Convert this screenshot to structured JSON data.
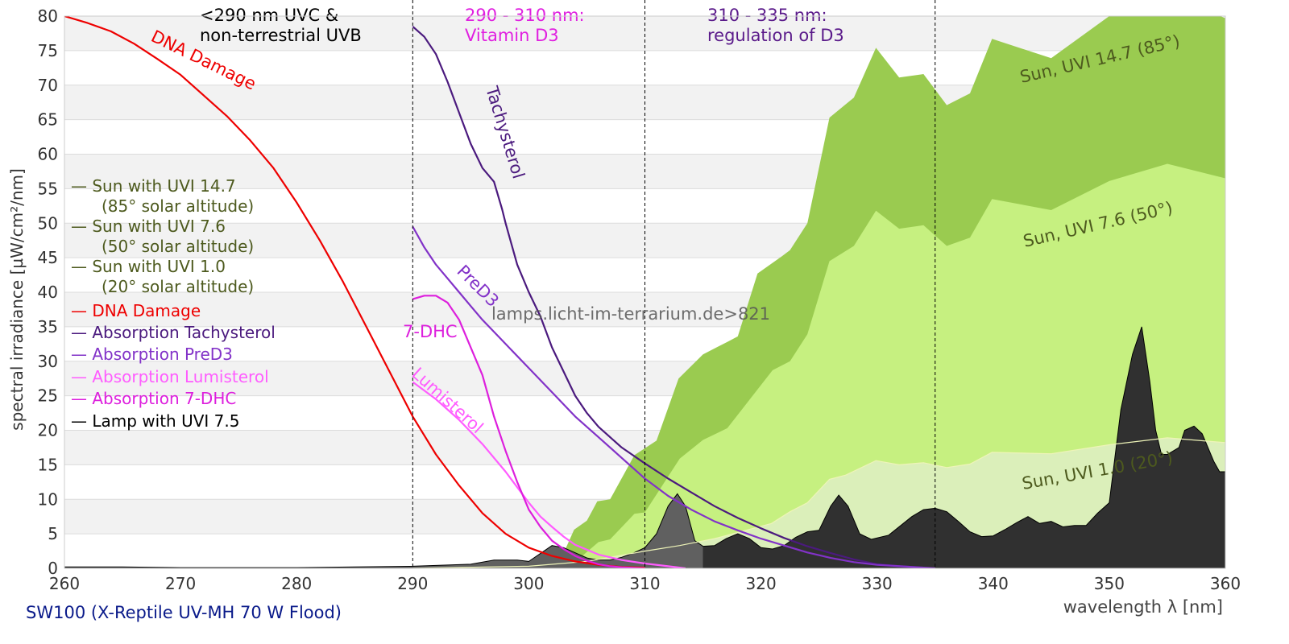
{
  "chart_data": {
    "type": "area",
    "xlabel": "wavelength λ [nm]",
    "ylabel": "spectral irradiance [µW/cm²/nm]",
    "xlim": [
      260,
      360
    ],
    "ylim": [
      0,
      80
    ],
    "x_ticks": [
      260,
      270,
      280,
      290,
      300,
      310,
      320,
      330,
      340,
      350,
      360
    ],
    "y_ticks": [
      0,
      5,
      10,
      15,
      20,
      25,
      30,
      35,
      40,
      45,
      50,
      55,
      60,
      65,
      70,
      75,
      80
    ],
    "grid": "horizontal, alternating bands",
    "footer": "SW100 (X-Reptile UV-MH 70 W Flood)",
    "watermark": "lamps.licht-im-terrarium.de>821",
    "regions": [
      {
        "line": 290,
        "label1": "<290 nm UVC &",
        "label2": "non-terrestrial UVB",
        "color": "#000000"
      },
      {
        "line": 310,
        "label1": "290 - 310 nm:",
        "label2": "Vitamin D3",
        "color": "#e020e0"
      },
      {
        "line": 335,
        "label1": "310 - 335 nm:",
        "label2": "regulation of D3",
        "color": "#5a1a8a"
      }
    ],
    "legend": [
      {
        "text": "— Sun with UVI 14.7",
        "sub": "(85° solar altitude)",
        "color": "#4d5a1e"
      },
      {
        "text": "— Sun with UVI 7.6",
        "sub": "(50° solar altitude)",
        "color": "#4d5a1e"
      },
      {
        "text": "— Sun with UVI 1.0",
        "sub": "(20° solar altitude)",
        "color": "#4d5a1e"
      },
      {
        "text": "— DNA Damage",
        "color": "#ee0000"
      },
      {
        "text": "— Absorption Tachysterol",
        "color": "#4b1a7e"
      },
      {
        "text": "— Absorption PreD3",
        "color": "#8232c8"
      },
      {
        "text": "— Absorption Lumisterol",
        "color": "#ff5cff"
      },
      {
        "text": "— Absorption 7-DHC",
        "color": "#dd1fdd"
      },
      {
        "text": "— Lamp with UVI 7.5",
        "color": "#000000"
      }
    ],
    "areas": [
      {
        "name": "Sun, UVI 14.7 (85°)",
        "color": "#9acb50",
        "x": [
          299,
          300,
          301,
          302,
          303,
          303.9,
          305,
          305.9,
          307,
          309.1,
          311,
          312.9,
          315,
          317.1,
          318,
          319.7,
          321.8,
          322.5,
          324,
          325.9,
          328,
          329.9,
          331.9,
          334,
          336,
          338,
          339.9,
          345,
          350,
          353.7,
          356.3,
          360
        ],
        "y": [
          0,
          0.5,
          1.5,
          2,
          2.2,
          5.6,
          6.9,
          9.7,
          10,
          16.4,
          18.5,
          27.5,
          31,
          32.8,
          33.6,
          42.7,
          45.2,
          46.1,
          50,
          65.3,
          68.2,
          75.4,
          71.1,
          71.6,
          67.1,
          68.8,
          76.7,
          73.9,
          80,
          82.4,
          82.4,
          79.7
        ]
      },
      {
        "name": "Sun, UVI 7.6 (50°)",
        "color": "#c6f080",
        "x": [
          301,
          303,
          304.4,
          306,
          307,
          309.1,
          310,
          313,
          315,
          317.1,
          319,
          321,
          322.5,
          324,
          325.9,
          328,
          329.9,
          331.9,
          334,
          336,
          338,
          339.9,
          345,
          350,
          355,
          360
        ],
        "y": [
          0,
          0.5,
          1.5,
          3.8,
          4.2,
          7.9,
          8.1,
          15.9,
          18.6,
          20.3,
          24.4,
          28.7,
          30,
          33.9,
          44.5,
          46.7,
          51.8,
          49.2,
          49.7,
          46.7,
          47.9,
          53.5,
          51.9,
          56.1,
          58.6,
          56.5
        ]
      },
      {
        "name": "Sun, UVI 1.0 (20°)",
        "color": "#dbefba",
        "x": [
          290,
          300,
          305,
          310,
          313,
          316,
          320.9,
          322.5,
          324,
          325.9,
          327.3,
          329.9,
          331.9,
          334,
          336,
          338,
          339.9,
          345,
          350,
          355,
          360
        ],
        "y": [
          0,
          0.3,
          1,
          2.5,
          3.3,
          4.3,
          6.5,
          8.2,
          9.5,
          12.9,
          13.5,
          15.6,
          15,
          15.3,
          14.6,
          15.1,
          16.8,
          16.6,
          17.9,
          18.9,
          18.2
        ]
      },
      {
        "name": "Lamp with UVI 7.5",
        "color": "#303030",
        "x": [
          260,
          265,
          270,
          275,
          280,
          285,
          290,
          295,
          297,
          299,
          300,
          302,
          303,
          305,
          306,
          307,
          308,
          309,
          310,
          311,
          312,
          312.8,
          313.5,
          314.3,
          315,
          316,
          317,
          318,
          319,
          320,
          321,
          322,
          323,
          324,
          325,
          326,
          326.7,
          327.5,
          328.5,
          329.5,
          331,
          333,
          334,
          335,
          336,
          337,
          338,
          339,
          340,
          341,
          342,
          343,
          344,
          345,
          346,
          347,
          348,
          349,
          350,
          351,
          352,
          352.8,
          353.5,
          354,
          354.5,
          355,
          356,
          356.5,
          357.3,
          358,
          359,
          359.5,
          360
        ],
        "y": [
          0.2,
          0.2,
          0.1,
          0.1,
          0.1,
          0.2,
          0.3,
          0.6,
          1.2,
          1.2,
          1.0,
          3.3,
          3.0,
          1.5,
          1.2,
          1.2,
          1.6,
          2.2,
          3.0,
          5,
          9,
          10.8,
          9,
          4,
          3.2,
          3.3,
          4.3,
          5,
          4.3,
          3,
          2.8,
          3.3,
          4.5,
          5.3,
          5.5,
          9,
          10.6,
          9,
          5,
          4.2,
          4.8,
          7.5,
          8.5,
          8.7,
          8.2,
          6.8,
          5.3,
          4.6,
          4.7,
          5.6,
          6.6,
          7.5,
          6.5,
          6.8,
          6,
          6.2,
          6.2,
          8,
          9.5,
          23,
          31,
          35,
          27,
          20,
          16.5,
          16.5,
          17.5,
          20,
          20.6,
          19.5,
          15.5,
          14,
          14
        ]
      }
    ],
    "series": [
      {
        "name": "DNA Damage",
        "color": "#ee0000",
        "x": [
          260,
          262,
          264,
          266,
          268,
          270,
          272,
          274,
          276,
          278,
          280,
          282,
          284,
          286,
          288,
          290,
          292,
          294,
          296,
          298,
          300,
          302,
          304,
          306,
          308,
          310
        ],
        "y": [
          80,
          79,
          77.8,
          76,
          73.8,
          71.5,
          68.5,
          65.5,
          62,
          58,
          53,
          47.5,
          41.5,
          35,
          28.5,
          22,
          16.5,
          12,
          8,
          5,
          3,
          1.8,
          1,
          0.5,
          0.2,
          0.1
        ]
      },
      {
        "name": "Tachysterol",
        "color": "#4b1a7e",
        "x": [
          290,
          291,
          292,
          293,
          294,
          295,
          296,
          297,
          297.7,
          298,
          299,
          300,
          301,
          302,
          303,
          304,
          305,
          306,
          307,
          308,
          310,
          312,
          314,
          316,
          318,
          320,
          322,
          324,
          326,
          328,
          330,
          332,
          334
        ],
        "y": [
          78.5,
          77,
          74.5,
          70.5,
          66,
          61.5,
          58,
          56,
          52,
          50,
          44,
          40,
          36.5,
          32,
          28.5,
          25,
          22.5,
          20.5,
          19,
          17.5,
          15.2,
          13,
          11,
          9,
          7.3,
          5.8,
          4.4,
          3.2,
          2.2,
          1.3,
          0.6,
          0.3,
          0.1
        ]
      },
      {
        "name": "PreD3",
        "color": "#8232c8",
        "x": [
          290,
          291,
          292,
          293,
          294,
          295,
          296,
          298,
          300,
          302,
          304,
          306,
          308,
          310,
          312,
          314,
          316,
          318,
          320,
          322,
          324,
          326,
          328,
          330,
          332,
          334,
          335
        ],
        "y": [
          49.5,
          46.5,
          44,
          42,
          40,
          38,
          36,
          32.5,
          29,
          25.5,
          22,
          19,
          16,
          13,
          10.5,
          8.5,
          6.8,
          5.5,
          4.3,
          3.3,
          2.3,
          1.5,
          0.9,
          0.5,
          0.3,
          0.1,
          0
        ]
      },
      {
        "name": "Lumisterol",
        "color": "#ff5cff",
        "x": [
          290,
          292,
          294,
          296,
          298,
          300,
          301,
          302,
          303,
          304,
          306,
          308,
          310,
          312,
          313.5
        ],
        "y": [
          27,
          24.5,
          21.5,
          18,
          14,
          9.5,
          7.5,
          6,
          4.6,
          3.4,
          2,
          1.2,
          0.7,
          0.3,
          0
        ]
      },
      {
        "name": "7-DHC",
        "color": "#dd1fdd",
        "x": [
          290,
          291,
          292,
          293,
          294,
          295,
          296,
          297,
          298,
          299,
          300,
          301,
          302,
          303,
          304,
          305,
          306,
          307,
          308,
          310
        ],
        "y": [
          39,
          39.5,
          39.5,
          38.5,
          36,
          32,
          28,
          22,
          17,
          12.5,
          8.5,
          6,
          4,
          2.8,
          1.8,
          1.1,
          0.6,
          0.3,
          0.15,
          0
        ]
      }
    ],
    "curve_labels": [
      {
        "text": "DNA Damage",
        "color": "#ee0000"
      },
      {
        "text": "Tachysterol",
        "color": "#4b1a7e"
      },
      {
        "text": "PreD3",
        "color": "#8232c8"
      },
      {
        "text": "7-DHC",
        "color": "#dd1fdd"
      },
      {
        "text": "Lumisterol",
        "color": "#ff5cff"
      },
      {
        "text": "Sun, UVI 14.7 (85°)",
        "color": "#4d5a1e"
      },
      {
        "text": "Sun, UVI 7.6 (50°)",
        "color": "#4d5a1e"
      },
      {
        "text": "Sun, UVI 1.0 (20°)",
        "color": "#4d5a1e"
      }
    ]
  }
}
